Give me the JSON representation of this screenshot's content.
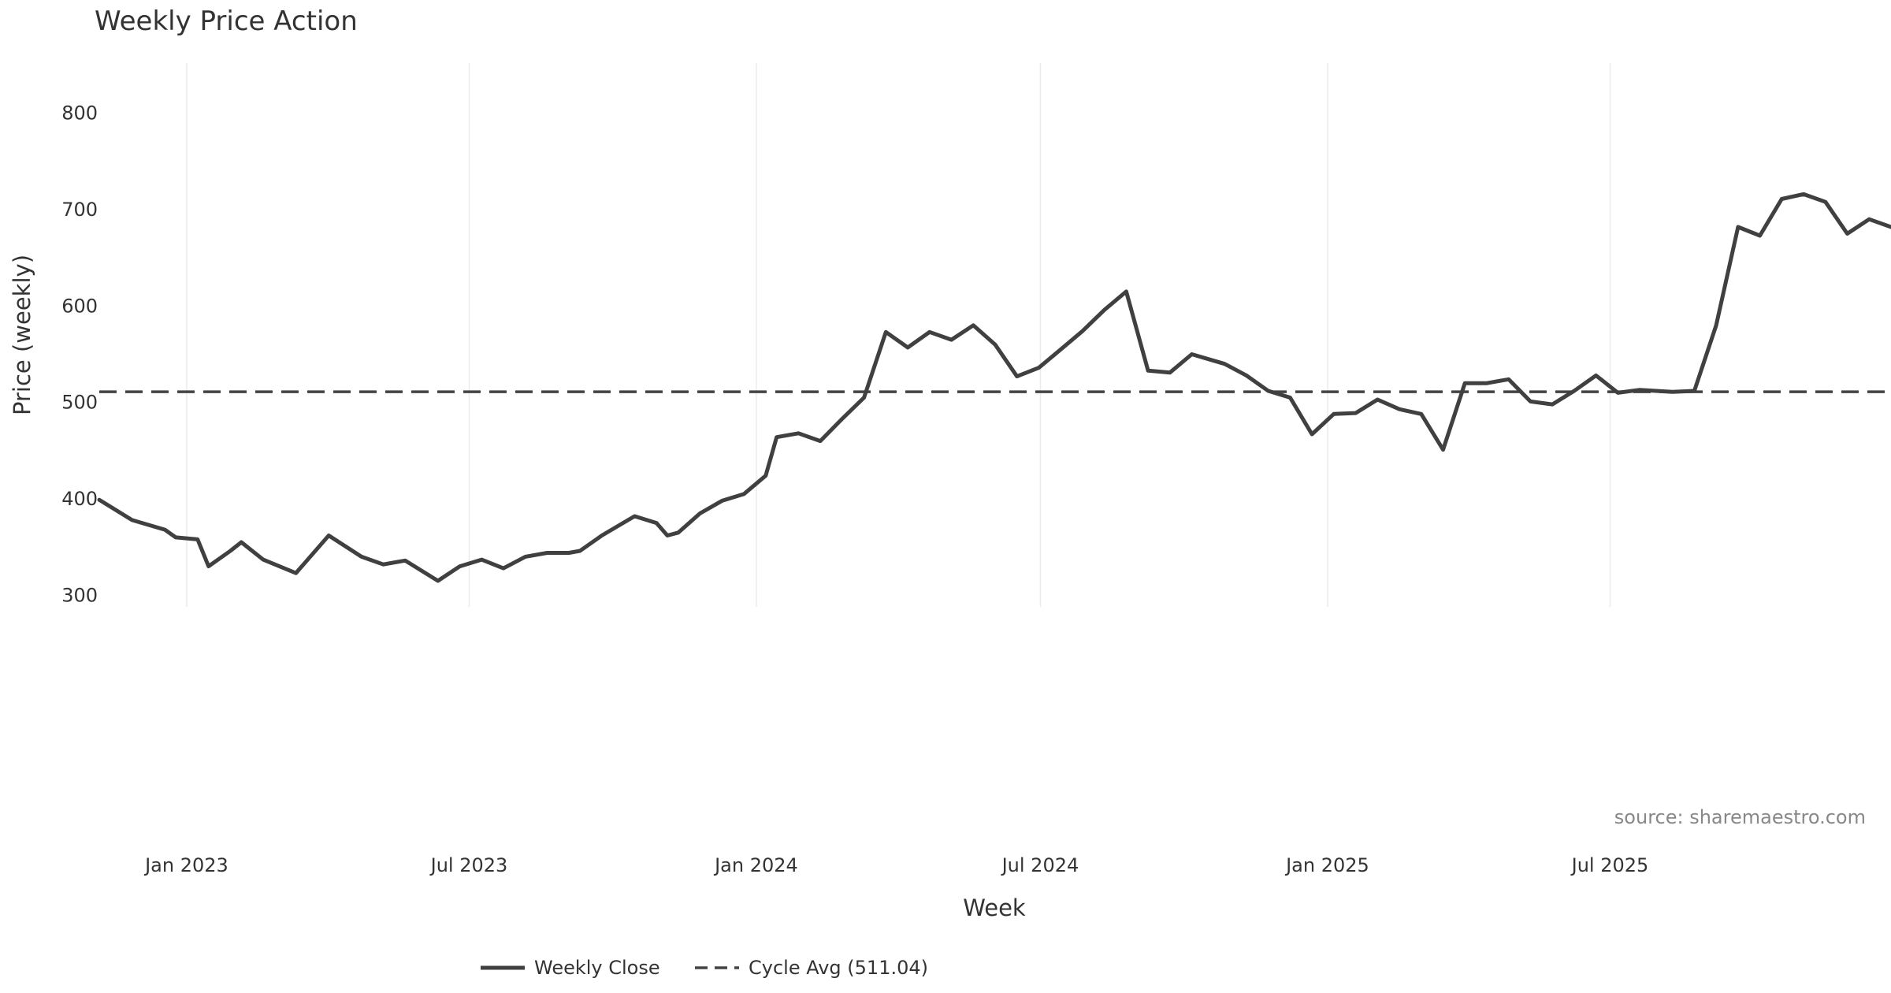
{
  "chart_data": {
    "type": "line",
    "title": "Weekly Price Action",
    "xlabel": "Week",
    "x_ticks": [
      {
        "date": "2023-01-01",
        "label": "Jan 2023"
      },
      {
        "date": "2023-07-01",
        "label": "Jul 2023"
      },
      {
        "date": "2024-01-01",
        "label": "Jan 2024"
      },
      {
        "date": "2024-07-01",
        "label": "Jul 2024"
      },
      {
        "date": "2025-01-01",
        "label": "Jan 2025"
      },
      {
        "date": "2025-07-01",
        "label": "Jul 2025"
      }
    ],
    "x_range": [
      "2022-11-06",
      "2025-12-28"
    ],
    "grid": true,
    "legend_placement": "bottom-center",
    "source_note": "source: sharemaestro.com",
    "price_panel": {
      "ylabel": "Price (weekly)",
      "ylim": [
        288,
        852
      ],
      "yticks": [
        300,
        400,
        500,
        600,
        700,
        800
      ],
      "reference_line": {
        "name": "Cycle Avg (511.04)",
        "value": 511.04,
        "color": "#444444"
      },
      "series": [
        {
          "name": "Weekly Close",
          "color": "#404040",
          "style": "solid",
          "points": [
            [
              "2022-11-06",
              399
            ],
            [
              "2022-11-27",
              378
            ],
            [
              "2022-12-18",
              368
            ],
            [
              "2022-12-25",
              360
            ],
            [
              "2023-01-08",
              358
            ],
            [
              "2023-01-15",
              330
            ],
            [
              "2023-01-29",
              346
            ],
            [
              "2023-02-05",
              355
            ],
            [
              "2023-02-19",
              337
            ],
            [
              "2023-03-12",
              323
            ],
            [
              "2023-04-02",
              362
            ],
            [
              "2023-04-23",
              340
            ],
            [
              "2023-05-07",
              332
            ],
            [
              "2023-05-21",
              336
            ],
            [
              "2023-06-11",
              315
            ],
            [
              "2023-06-25",
              330
            ],
            [
              "2023-07-09",
              337
            ],
            [
              "2023-07-23",
              328
            ],
            [
              "2023-08-06",
              340
            ],
            [
              "2023-08-20",
              344
            ],
            [
              "2023-09-03",
              344
            ],
            [
              "2023-09-10",
              346
            ],
            [
              "2023-09-24",
              362
            ],
            [
              "2023-10-15",
              382
            ],
            [
              "2023-10-29",
              375
            ],
            [
              "2023-11-05",
              362
            ],
            [
              "2023-11-12",
              365
            ],
            [
              "2023-11-26",
              385
            ],
            [
              "2023-12-10",
              398
            ],
            [
              "2023-12-24",
              405
            ],
            [
              "2024-01-07",
              424
            ],
            [
              "2024-01-14",
              464
            ],
            [
              "2024-01-28",
              468
            ],
            [
              "2024-02-11",
              460
            ],
            [
              "2024-02-25",
              483
            ],
            [
              "2024-03-10",
              505
            ],
            [
              "2024-03-24",
              573
            ],
            [
              "2024-04-07",
              557
            ],
            [
              "2024-04-21",
              573
            ],
            [
              "2024-05-05",
              565
            ],
            [
              "2024-05-19",
              580
            ],
            [
              "2024-06-02",
              560
            ],
            [
              "2024-06-16",
              527
            ],
            [
              "2024-06-30",
              536
            ],
            [
              "2024-07-14",
              555
            ],
            [
              "2024-07-28",
              574
            ],
            [
              "2024-08-11",
              596
            ],
            [
              "2024-08-25",
              615
            ],
            [
              "2024-09-08",
              533
            ],
            [
              "2024-09-22",
              531
            ],
            [
              "2024-10-06",
              550
            ],
            [
              "2024-10-27",
              540
            ],
            [
              "2024-11-10",
              528
            ],
            [
              "2024-11-24",
              512
            ],
            [
              "2024-12-08",
              505
            ],
            [
              "2024-12-22",
              467
            ],
            [
              "2025-01-05",
              488
            ],
            [
              "2025-01-19",
              489
            ],
            [
              "2025-02-02",
              503
            ],
            [
              "2025-02-16",
              493
            ],
            [
              "2025-03-02",
              488
            ],
            [
              "2025-03-16",
              451
            ],
            [
              "2025-03-30",
              520
            ],
            [
              "2025-04-13",
              520
            ],
            [
              "2025-04-27",
              524
            ],
            [
              "2025-05-11",
              501
            ],
            [
              "2025-05-25",
              498
            ],
            [
              "2025-06-08",
              512
            ],
            [
              "2025-06-22",
              528
            ],
            [
              "2025-07-06",
              510
            ],
            [
              "2025-07-20",
              513
            ],
            [
              "2025-08-10",
              511
            ],
            [
              "2025-08-24",
              512
            ],
            [
              "2025-09-07",
              580
            ],
            [
              "2025-09-21",
              682
            ],
            [
              "2025-10-05",
              673
            ],
            [
              "2025-10-19",
              711
            ],
            [
              "2025-11-02",
              716
            ],
            [
              "2025-11-16",
              708
            ],
            [
              "2025-11-30",
              675
            ],
            [
              "2025-12-14",
              690
            ],
            [
              "2025-12-28",
              682
            ]
          ]
        }
      ]
    }
  }
}
